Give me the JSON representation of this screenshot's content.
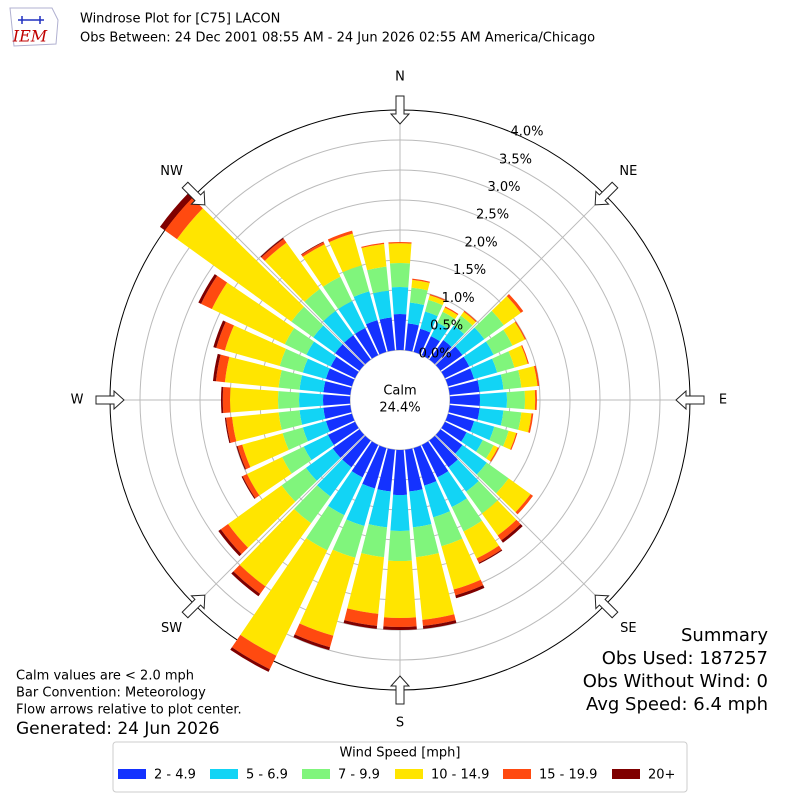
{
  "chart_data": {
    "type": "windrose",
    "title": "Windrose Plot for [C75] LACON",
    "subtitle": "Obs Between: 24 Dec 2001 08:55 AM - 24 Jun 2026 02:55 AM America/Chicago",
    "logo_text": "IEM",
    "theta": [
      0,
      10,
      20,
      30,
      40,
      50,
      60,
      70,
      80,
      90,
      100,
      110,
      120,
      130,
      140,
      150,
      160,
      170,
      180,
      190,
      200,
      210,
      220,
      230,
      240,
      250,
      260,
      270,
      280,
      290,
      300,
      310,
      320,
      330,
      340,
      350
    ],
    "direction_labels": [
      "N",
      "NE",
      "E",
      "SE",
      "S",
      "SW",
      "W",
      "NW"
    ],
    "rlim": [
      0,
      4.0
    ],
    "rticks": [
      {
        "value": 0,
        "label": "0.0%"
      },
      {
        "value": 0.5,
        "label": "0.5%"
      },
      {
        "value": 1.0,
        "label": "1.0%"
      },
      {
        "value": 1.5,
        "label": "1.5%"
      },
      {
        "value": 2.0,
        "label": "2.0%"
      },
      {
        "value": 2.5,
        "label": "2.5%"
      },
      {
        "value": 3.0,
        "label": "3.0%"
      },
      {
        "value": 3.5,
        "label": "3.5%"
      },
      {
        "value": 4.0,
        "label": "4.0%"
      }
    ],
    "calm_label": "Calm",
    "calm_value": 24.4,
    "calm_value_label": "24.4%",
    "legend_title": "Wind Speed [mph]",
    "series": [
      {
        "name": "2 - 4.9",
        "color": "#1432ff",
        "values": [
          0.6,
          0.45,
          0.4,
          0.35,
          0.4,
          0.45,
          0.45,
          0.45,
          0.5,
          0.5,
          0.5,
          0.45,
          0.4,
          0.45,
          0.55,
          0.6,
          0.65,
          0.7,
          0.75,
          0.7,
          0.7,
          0.6,
          0.55,
          0.55,
          0.5,
          0.45,
          0.45,
          0.45,
          0.45,
          0.45,
          0.45,
          0.5,
          0.5,
          0.5,
          0.55,
          0.55
        ]
      },
      {
        "name": "5 - 6.9",
        "color": "#12d4f5",
        "values": [
          0.45,
          0.35,
          0.3,
          0.25,
          0.3,
          0.45,
          0.45,
          0.4,
          0.4,
          0.45,
          0.4,
          0.35,
          0.3,
          0.5,
          0.5,
          0.55,
          0.55,
          0.6,
          0.6,
          0.6,
          0.65,
          0.7,
          0.6,
          0.55,
          0.45,
          0.4,
          0.4,
          0.4,
          0.4,
          0.4,
          0.45,
          0.45,
          0.5,
          0.5,
          0.5,
          0.45
        ]
      },
      {
        "name": "7 - 9.9",
        "color": "#80f57c",
        "values": [
          0.4,
          0.25,
          0.2,
          0.2,
          0.2,
          0.4,
          0.35,
          0.3,
          0.3,
          0.3,
          0.3,
          0.25,
          0.2,
          0.45,
          0.45,
          0.45,
          0.5,
          0.5,
          0.5,
          0.5,
          0.55,
          0.65,
          0.55,
          0.5,
          0.4,
          0.35,
          0.35,
          0.35,
          0.35,
          0.4,
          0.4,
          0.45,
          0.45,
          0.45,
          0.45,
          0.4
        ]
      },
      {
        "name": "10 - 14.9",
        "color": "#ffe500",
        "values": [
          0.33,
          0.13,
          0.08,
          0.08,
          0.08,
          0.35,
          0.23,
          0.23,
          0.27,
          0.17,
          0.17,
          0.13,
          0.08,
          0.45,
          0.45,
          0.5,
          0.75,
          1.05,
          0.95,
          0.95,
          1.35,
          1.95,
          1.3,
          1.1,
          0.65,
          0.7,
          0.78,
          0.8,
          0.9,
          0.95,
          1.35,
          2.35,
          0.95,
          0.6,
          0.55,
          0.38
        ]
      },
      {
        "name": "15 - 19.9",
        "color": "#ff4a10",
        "values": [
          0.02,
          0.02,
          0.02,
          0.02,
          0.02,
          0.05,
          0.02,
          0.02,
          0.03,
          0.03,
          0.03,
          0.02,
          0.02,
          0.05,
          0.1,
          0.08,
          0.1,
          0.1,
          0.15,
          0.2,
          0.2,
          0.25,
          0.15,
          0.15,
          0.08,
          0.08,
          0.1,
          0.12,
          0.15,
          0.15,
          0.2,
          0.25,
          0.08,
          0.04,
          0.05,
          0.02
        ]
      },
      {
        "name": "20+",
        "color": "#7f0000",
        "values": [
          0,
          0,
          0,
          0,
          0,
          0,
          0,
          0,
          0,
          0,
          0,
          0,
          0,
          0,
          0.05,
          0.02,
          0.05,
          0.05,
          0.05,
          0.05,
          0.05,
          0.05,
          0.05,
          0.05,
          0.02,
          0.02,
          0.02,
          0.03,
          0.05,
          0.05,
          0.05,
          0.1,
          0.02,
          0.01,
          0,
          0
        ]
      }
    ],
    "summary": [
      "Summary",
      "Obs Used: 187257",
      "Obs Without Wind: 0",
      "Avg Speed: 6.4 mph"
    ],
    "notes": [
      "Calm values are < 2.0 mph",
      "Bar Convention: Meteorology",
      "Flow arrows relative to plot center."
    ],
    "generated": "Generated: 24 Jun 2026"
  }
}
